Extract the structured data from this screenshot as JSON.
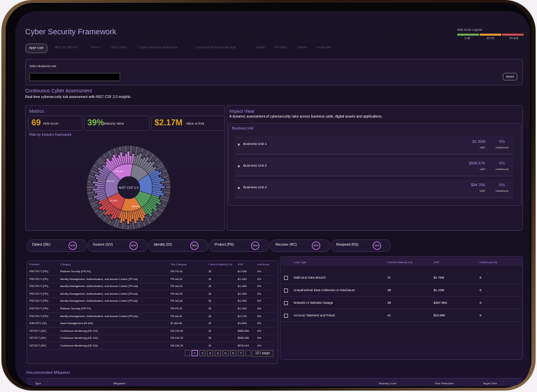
{
  "header": {
    "title": "Cyber Security Framework"
  },
  "legend": {
    "title": "Risk Score Legend",
    "ranges": [
      "1-40",
      "40-70",
      "70-100"
    ]
  },
  "tabs": [
    "NIST CSF",
    "NIST SP 800-53",
    "HIPAA",
    "ISO 27001",
    "Cyber Insurance Readiness",
    "Consumer Financial Security",
    "CMMC",
    "PCI DSS",
    "GDPR",
    "FedRAMP"
  ],
  "business_unit": {
    "label": "Select Business Unit",
    "reset": "Reset"
  },
  "assessment": {
    "title": "Continuous Cyber Assessment",
    "subtitle": "Real-time cybersecurity risk assessment with NIST CSF 2.0 insights."
  },
  "metrics": {
    "title": "Metrics",
    "items": [
      {
        "value": "69",
        "label": "Risk Score"
      },
      {
        "value": "39%",
        "label": "Maturity Value"
      },
      {
        "value": "$2.17M",
        "label": "Value at Risk"
      }
    ]
  },
  "sunburst": {
    "title": "Risk by Industry framework",
    "center": "NIST CSF 2.0",
    "labels": [
      "Detect",
      "ID.AM",
      "GV.OC",
      "PR.AA"
    ]
  },
  "impact": {
    "title": "Impact View",
    "description": "A dynamic assessment of cybersecurity risks across business units, digital assets and applications.",
    "panel": "Business Unit",
    "units": [
      {
        "name": "Business Unit 1",
        "var": "$1.36M",
        "var_label": "VAR",
        "likelihood": "6%",
        "likelihood_label": "Likelihood"
      },
      {
        "name": "Business Unit 2",
        "var": "$508.57K",
        "var_label": "VAR",
        "likelihood": "6%",
        "likelihood_label": "Likelihood"
      },
      {
        "name": "Business Unit 3",
        "var": "$94.76K",
        "var_label": "VAR",
        "likelihood": "6%",
        "likelihood_label": "Likelihood"
      }
    ]
  },
  "functions": [
    {
      "name": "Detect (DE)",
      "pct": "40%"
    },
    {
      "name": "Govern (GV)",
      "pct": "40%"
    },
    {
      "name": "Identify (ID)",
      "pct": "38%"
    },
    {
      "name": "Protect (PR)",
      "pct": "39%"
    },
    {
      "name": "Recover (RC)",
      "pct": "34%"
    },
    {
      "name": "Respond (RS)",
      "pct": "34%"
    }
  ],
  "table": {
    "headers": [
      "Function",
      "Category",
      "Sub Category",
      "Current Maturity (%)",
      "VAR",
      "Likelihood"
    ],
    "rows": [
      [
        "PROTECT (PR)",
        "Platform Security (PR.PS)",
        "PR.PS-04",
        "30",
        "$1.29M",
        "6%"
      ],
      [
        "PROTECT (PR)",
        "Identity Management, Authentication, and Access Control (PR.AA)",
        "PR.AA-02",
        "30",
        "$1.19M",
        "6%"
      ],
      [
        "PROTECT (PR)",
        "Identity Management, Authentication, and Access Control (PR.AA)",
        "PR.AA-03",
        "30",
        "$1.19M",
        "6%"
      ],
      [
        "PROTECT (PR)",
        "Identity Management, Authentication, and Access Control (PR.AA)",
        "PR.AA-05",
        "30",
        "$1.19M",
        "6%"
      ],
      [
        "PROTECT (PR)",
        "Identity Management, Authentication, and Access Control (PR.AA)",
        "PR.AA-06",
        "30",
        "$1.19M",
        "6%"
      ],
      [
        "PROTECT (PR)",
        "Platform Security (PR.PS)",
        "PR.PS-01",
        "30",
        "$1.19M",
        "6%"
      ],
      [
        "PROTECT (PR)",
        "Identity Management, Authentication, and Access Control (PR.AA)",
        "PR.AA-01",
        "40",
        "$1.17M",
        "6%"
      ],
      [
        "IDENTIFY (ID)",
        "Asset Management (ID.AM)",
        "ID.AM-08",
        "30",
        "$1.04M",
        "6%"
      ],
      [
        "DETECT (DE)",
        "Continuous Monitoring (DE.CM)",
        "DE.CM-06",
        "30",
        "$988.48K",
        "6%"
      ],
      [
        "DETECT (DE)",
        "Continuous Monitoring (DE.CM)",
        "DE.CM-03",
        "30",
        "$988.48K",
        "6%"
      ],
      [
        "DETECT (DE)",
        "Continuous Monitoring (DE.CM)",
        "DE.CM-09",
        "40",
        "$976.41K",
        "6%"
      ]
    ]
  },
  "loss_table": {
    "headers": [
      "Loss Type",
      "Current Maturity (%)",
      "VAR",
      "Likelihood (%)"
    ],
    "rows": [
      [
        "Malicious Data Breach",
        "41",
        "$1.75M",
        "6"
      ],
      [
        "Unauthorized Data Collection or Disclosure",
        "39",
        "$1.23M",
        "6"
      ],
      [
        "Network or Website Outage",
        "39",
        "$367.98K",
        "5"
      ],
      [
        "Account Takeover and Fraud",
        "41",
        "$19.98K",
        "6"
      ]
    ]
  },
  "pagination": {
    "pages": [
      "1",
      "2",
      "3",
      "4",
      "5",
      "6",
      "7"
    ],
    "page_size": "10 / page"
  },
  "mitigation": {
    "title": "Recommended Mitigation",
    "headers": [
      "Type",
      "Mitigation",
      "Maturity Level",
      "Risk Reduction",
      "Target Date"
    ]
  }
}
